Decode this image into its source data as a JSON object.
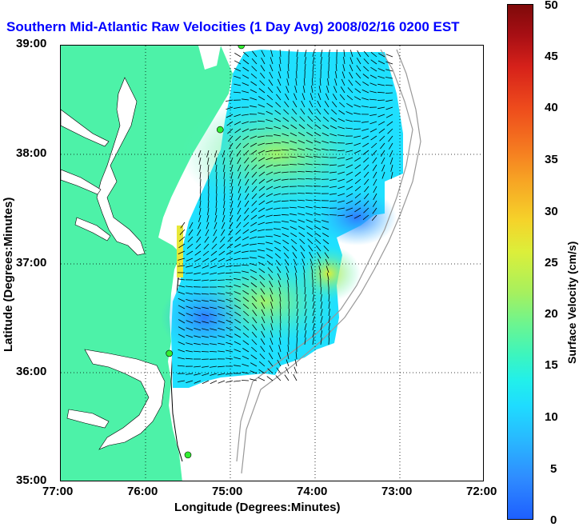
{
  "title": "Southern Mid-Atlantic Raw Velocities (1 Day Avg) 2008/02/16 0200 EST",
  "x_axis": {
    "label": "Longitude (Degrees:Minutes)",
    "ticks": [
      "77:00",
      "76:00",
      "75:00",
      "74:00",
      "73:00",
      "72:00"
    ]
  },
  "y_axis": {
    "label": "Latitude (Degrees:Minutes)",
    "ticks": [
      "39:00",
      "38:00",
      "37:00",
      "36:00",
      "35:00"
    ]
  },
  "colorbar": {
    "label": "Surface Velocity (cm/s)",
    "ticks": [
      "50",
      "45",
      "40",
      "35",
      "30",
      "25",
      "20",
      "15",
      "10",
      "5",
      "0"
    ],
    "range": [
      0,
      50
    ]
  },
  "colors": {
    "land": "#4df2a8",
    "title": "#0000ff",
    "station": "#33ee33"
  },
  "map": {
    "lon_range": [
      -77,
      -72
    ],
    "lat_range": [
      35,
      39
    ],
    "grid": true,
    "stations": [
      {
        "lon": -74.87,
        "lat": 39.0
      },
      {
        "lon": -75.12,
        "lat": 38.23
      },
      {
        "lon": -75.72,
        "lat": 36.18
      },
      {
        "lon": -75.5,
        "lat": 35.25
      }
    ]
  }
}
